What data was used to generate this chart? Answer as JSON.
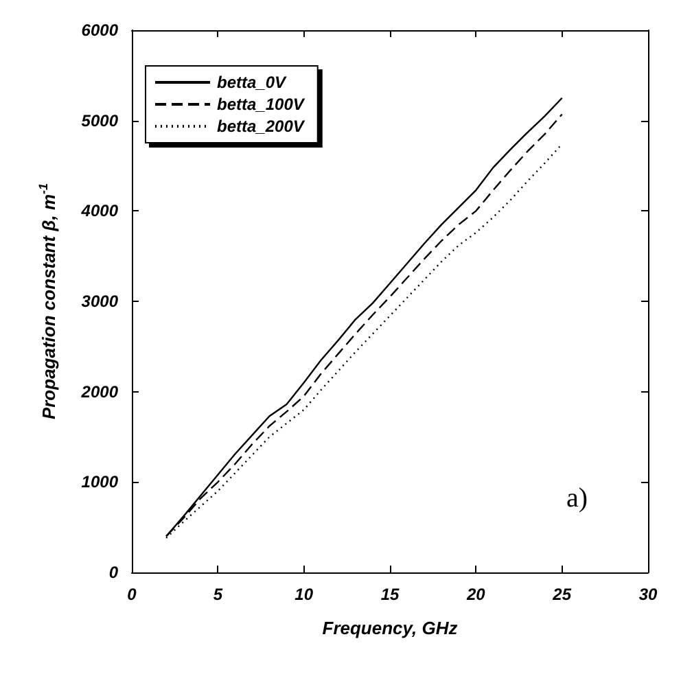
{
  "chart_data": {
    "type": "line",
    "xlabel": "Frequency, GHz",
    "ylabel": "Propagation constant β, m$^{-1}$",
    "x": [
      2,
      3,
      4,
      5,
      6,
      7,
      8,
      9,
      10,
      11,
      12,
      13,
      14,
      15,
      16,
      17,
      18,
      19,
      20,
      21,
      22,
      23,
      24,
      25
    ],
    "series": [
      {
        "name": "betta_0V",
        "color": "#000000",
        "line_style": "solid",
        "values": [
          400,
          620,
          850,
          1080,
          1310,
          1520,
          1730,
          1860,
          2100,
          2350,
          2570,
          2800,
          2980,
          3200,
          3420,
          3640,
          3850,
          4040,
          4230,
          4480,
          4680,
          4870,
          5050,
          5250
        ]
      },
      {
        "name": "betta_100V",
        "color": "#000000",
        "line_style": "dashed",
        "values": [
          400,
          600,
          820,
          1000,
          1200,
          1420,
          1620,
          1780,
          1950,
          2200,
          2420,
          2640,
          2850,
          3050,
          3260,
          3470,
          3670,
          3850,
          4000,
          4230,
          4450,
          4660,
          4850,
          5070
        ]
      },
      {
        "name": "betta_200V",
        "color": "#000000",
        "line_style": "dotted",
        "values": [
          380,
          560,
          730,
          900,
          1100,
          1300,
          1500,
          1650,
          1800,
          2020,
          2230,
          2440,
          2640,
          2840,
          3040,
          3240,
          3440,
          3620,
          3760,
          3930,
          4120,
          4330,
          4530,
          4740
        ]
      }
    ],
    "xlim": [
      0,
      30
    ],
    "xticks": [
      0,
      5,
      10,
      15,
      20,
      25,
      30
    ],
    "ylim": [
      0,
      6000
    ],
    "yticks": [
      0,
      1000,
      2000,
      3000,
      4000,
      5000,
      6000
    ],
    "grid": false,
    "legend": "top left",
    "marker": "none",
    "annotations": [
      "a)"
    ]
  }
}
